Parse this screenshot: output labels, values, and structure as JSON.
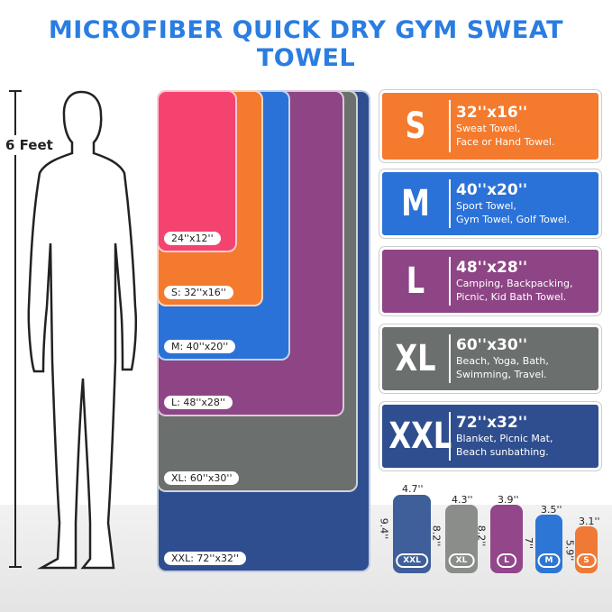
{
  "title": "MICROFIBER QUICK DRY GYM SWEAT TOWEL",
  "height_label": "6 Feet",
  "towels": [
    {
      "label": "XXL: 72''x32''",
      "color": "#2f4e8f"
    },
    {
      "label": "XL: 60''x30''",
      "color": "#6b706e"
    },
    {
      "label": "L: 48''x28''",
      "color": "#8e4585"
    },
    {
      "label": "M: 40''x20''",
      "color": "#2a72d8"
    },
    {
      "label": "S: 32''x16''",
      "color": "#f47a2e"
    },
    {
      "label": "24''x12''",
      "color": "#f5436f"
    }
  ],
  "cards": [
    {
      "size": "S",
      "dim": "32''x16''",
      "use1": "Sweat Towel,",
      "use2": "Face or Hand Towel.",
      "color": "#f47a2e"
    },
    {
      "size": "M",
      "dim": "40''x20''",
      "use1": "Sport Towel,",
      "use2": "Gym Towel, Golf Towel.",
      "color": "#2a72d8"
    },
    {
      "size": "L",
      "dim": "48''x28''",
      "use1": "Camping, Backpacking,",
      "use2": "Picnic, Kid Bath Towel.",
      "color": "#8e4585"
    },
    {
      "size": "XL",
      "dim": "60''x30''",
      "use1": "Beach, Yoga, Bath,",
      "use2": "Swimming, Travel.",
      "color": "#6b706e"
    },
    {
      "size": "XXL",
      "dim": "72''x32''",
      "use1": "Blanket, Picnic Mat,",
      "use2": "Beach sunbathing.",
      "color": "#2f4e8f"
    }
  ],
  "rolls": [
    {
      "badge": "XXL",
      "width": "4.7''",
      "height": "9.4''",
      "color": "#3f5f9a"
    },
    {
      "badge": "XL",
      "width": "4.3''",
      "height": "8.2''",
      "color": "#8a8d8a"
    },
    {
      "badge": "L",
      "width": "3.9''",
      "height": "8.2''",
      "color": "#93468a"
    },
    {
      "badge": "M",
      "width": "3.5''",
      "height": "7''",
      "color": "#2e76d6"
    },
    {
      "badge": "S",
      "width": "3.1''",
      "height": "5.9''",
      "color": "#f07a35"
    }
  ]
}
